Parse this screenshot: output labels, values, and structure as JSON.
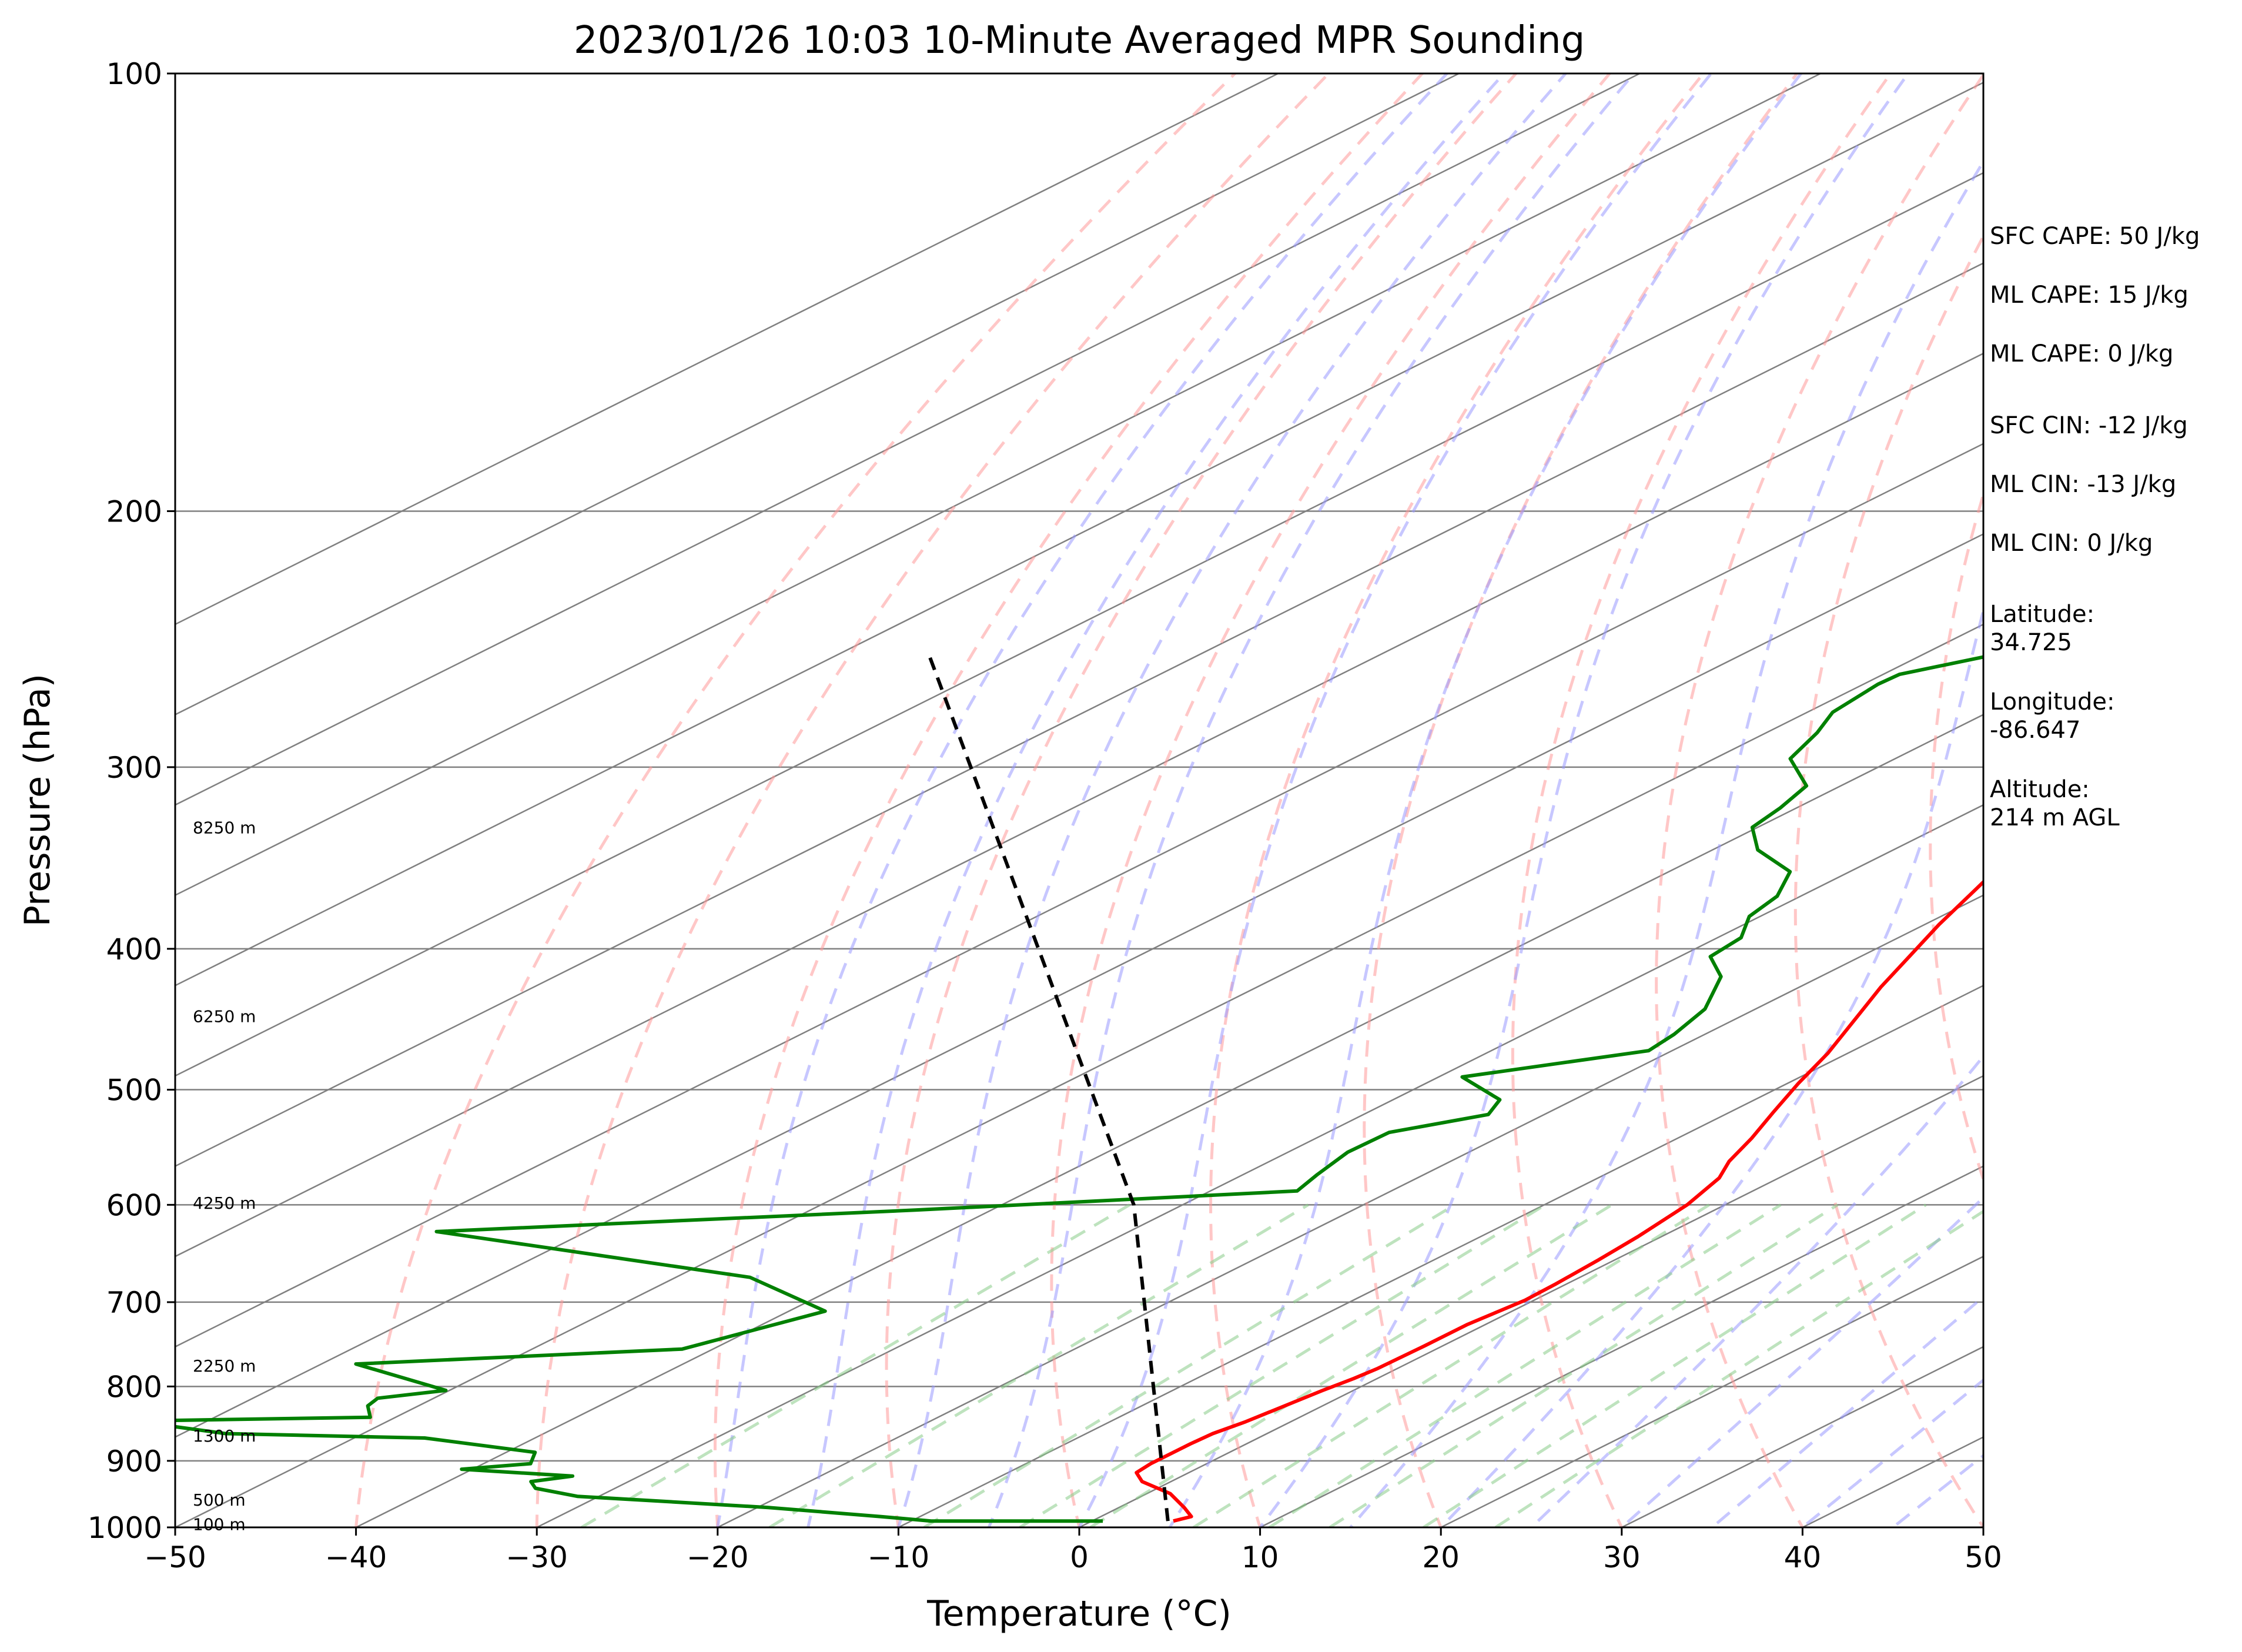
{
  "chart_data": {
    "type": "skew-t",
    "title": "2023/01/26 10:03 10-Minute Averaged MPR Sounding",
    "xlabel": "Temperature (°C)",
    "ylabel": "Pressure (hPa)",
    "xlim": [
      -50,
      50
    ],
    "ylim": [
      1000,
      100
    ],
    "y_scale": "log",
    "x_ticks": [
      -50,
      -40,
      -30,
      -20,
      -10,
      0,
      10,
      20,
      30,
      40,
      50
    ],
    "x_tick_labels": [
      "−50",
      "−40",
      "−30",
      "−20",
      "−10",
      "0",
      "10",
      "20",
      "30",
      "40",
      "50"
    ],
    "y_ticks": [
      1000,
      900,
      800,
      700,
      600,
      500,
      400,
      300,
      200,
      100
    ],
    "y_tick_labels": [
      "1000",
      "900",
      "800",
      "700",
      "600",
      "500",
      "400",
      "300",
      "200",
      "100"
    ],
    "grid": true,
    "colors": {
      "temperature": "#ff0000",
      "dewpoint": "#008000",
      "parcel": "#000000",
      "isotherm": "#808080",
      "dry_adiabat": "#ff9999",
      "moist_adiabat": "#9999ff",
      "mixing_ratio": "#88cc88"
    },
    "series": [
      {
        "role": "temperature",
        "points": [
          [
            4.5,
            990
          ],
          [
            5,
            983
          ],
          [
            3.6,
            969
          ],
          [
            1.3,
            948
          ],
          [
            -1.6,
            930
          ],
          [
            -2.9,
            917
          ],
          [
            -3.1,
            904
          ],
          [
            -3.1,
            894
          ],
          [
            -3.1,
            876
          ],
          [
            -3.0,
            862
          ],
          [
            -2.5,
            846
          ],
          [
            -2.0,
            820
          ],
          [
            -1.7,
            805
          ],
          [
            -1.3,
            790
          ],
          [
            -1.1,
            778
          ],
          [
            -1.0,
            750
          ],
          [
            -1.0,
            725
          ],
          [
            -0.5,
            698
          ],
          [
            -0.6,
            680
          ],
          [
            -0.9,
            655
          ],
          [
            -1.3,
            631
          ],
          [
            -2.1,
            600
          ],
          [
            -3.3,
            575
          ],
          [
            -4.6,
            560
          ],
          [
            -5.9,
            540
          ],
          [
            -7.6,
            518
          ],
          [
            -9.4,
            495
          ],
          [
            -11.1,
            472
          ],
          [
            -13.1,
            450
          ],
          [
            -15.5,
            425
          ],
          [
            -17.3,
            405
          ],
          [
            -19.2,
            385
          ],
          [
            -20.8,
            367
          ],
          [
            -22.4,
            350
          ],
          [
            -23.6,
            337
          ],
          [
            -24.7,
            324
          ],
          [
            -25.7,
            312
          ],
          [
            -26.6,
            300
          ],
          [
            -27.1,
            292
          ],
          [
            -27.4,
            283
          ],
          [
            -27.5,
            272
          ],
          [
            -27.6,
            262
          ],
          [
            -27.5,
            255
          ],
          [
            -27.4,
            248
          ]
        ]
      },
      {
        "role": "dewpoint",
        "points": [
          [
            0.6,
            990
          ],
          [
            -8.9,
            990
          ],
          [
            -12.2,
            983
          ],
          [
            -19.4,
            969
          ],
          [
            -31.2,
            952
          ],
          [
            -34.4,
            940
          ],
          [
            -35.4,
            930
          ],
          [
            -33.7,
            922
          ],
          [
            -40.6,
            912
          ],
          [
            -37.4,
            904
          ],
          [
            -38.4,
            888
          ],
          [
            -46.1,
            868
          ],
          [
            -57.6,
            862
          ],
          [
            -64.1,
            845
          ],
          [
            -51.4,
            840
          ],
          [
            -52.8,
            825
          ],
          [
            -53.1,
            815
          ],
          [
            -50.2,
            805
          ],
          [
            -58.1,
            772
          ],
          [
            -41.7,
            754
          ],
          [
            -38,
            710
          ],
          [
            -45.9,
            673
          ],
          [
            -68.3,
            626
          ],
          [
            -44.2,
            605
          ],
          [
            -25.2,
            587
          ],
          [
            -25.9,
            572
          ],
          [
            -26.7,
            552
          ],
          [
            -26.6,
            535
          ],
          [
            -23.1,
            520
          ],
          [
            -24.1,
            508
          ],
          [
            -28.7,
            490
          ],
          [
            -21.3,
            470
          ],
          [
            -21.7,
            458
          ],
          [
            -22.8,
            440
          ],
          [
            -25.5,
            418
          ],
          [
            -28.3,
            405
          ],
          [
            -28.7,
            393
          ],
          [
            -30.6,
            380
          ],
          [
            -31.3,
            368
          ],
          [
            -33.3,
            354
          ],
          [
            -37.5,
            342
          ],
          [
            -40.3,
            330
          ],
          [
            -40.9,
            320
          ],
          [
            -41.9,
            309
          ],
          [
            -45.8,
            296
          ],
          [
            -47.2,
            284
          ],
          [
            -48.6,
            275
          ],
          [
            -49.2,
            263
          ],
          [
            -49.1,
            259
          ],
          [
            -46.4,
            252
          ]
        ]
      },
      {
        "role": "parcel",
        "points": [
          [
            4.2,
            990
          ],
          [
            -32.7,
            600
          ],
          [
            -105.3,
            250
          ]
        ]
      }
    ],
    "height_labels": [
      {
        "text": "100 m",
        "p": 995
      },
      {
        "text": "500 m",
        "p": 957
      },
      {
        "text": "1300 m",
        "p": 865
      },
      {
        "text": "2250 m",
        "p": 774
      },
      {
        "text": "4250 m",
        "p": 598
      },
      {
        "text": "6250 m",
        "p": 445
      },
      {
        "text": "8250 m",
        "p": 330
      }
    ],
    "grid_lines": {
      "isotherms": [
        -150,
        -140,
        -130,
        -120,
        -110,
        -100,
        -90,
        -80,
        -70,
        -60,
        -50,
        -40,
        -30,
        -20,
        -10,
        0,
        10,
        20,
        30,
        40,
        50
      ],
      "dry_adiabat_theta_c": [
        -40,
        -30,
        -20,
        -10,
        0,
        10,
        20,
        30,
        40,
        50,
        60,
        70
      ],
      "moist_adiabat_t1000_c": [
        -20,
        -15,
        -10,
        -5,
        0,
        5,
        10,
        15,
        20,
        25,
        30,
        35,
        40,
        45
      ],
      "mixing_ratio_gkg": [
        0.4,
        1,
        2,
        3,
        4,
        6,
        8,
        10,
        14,
        18
      ]
    }
  },
  "side_text": [
    "SFC CAPE: 50 J/kg",
    "ML CAPE: 15 J/kg",
    "ML CAPE: 0 J/kg",
    "SFC CIN: -12 J/kg",
    "ML CIN: -13 J/kg",
    "ML CIN: 0 J/kg",
    "Latitude:",
    "34.725",
    "Longitude:",
    "-86.647",
    "Altitude:",
    "214 m AGL"
  ]
}
